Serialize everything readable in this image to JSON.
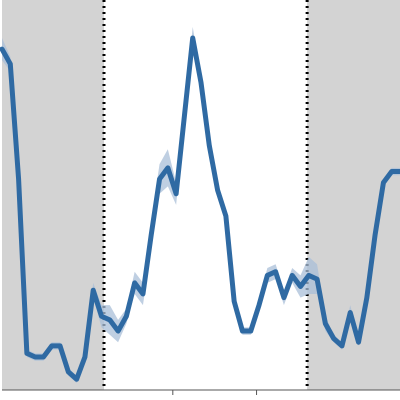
{
  "chart_data": {
    "type": "line",
    "title": "",
    "xlabel": "",
    "ylabel": "",
    "xlim": [
      0,
      48
    ],
    "ylim": [
      0,
      100
    ],
    "grid": false,
    "legend": "none",
    "shaded_regions": [
      {
        "x0": 0,
        "x1": 12.3,
        "color": "#d3d3d3"
      },
      {
        "x0": 36.8,
        "x1": 48,
        "color": "#d3d3d3"
      }
    ],
    "vertical_lines": [
      {
        "x": 12.3,
        "style": "dotted",
        "color": "#000000"
      },
      {
        "x": 36.8,
        "style": "dotted",
        "color": "#000000"
      }
    ],
    "x_ticks": [
      20.6,
      30.7
    ],
    "series": [
      {
        "color": "#2f6aa3",
        "band_color": "#a9bfd8",
        "x": [
          0,
          1,
          2,
          3,
          4,
          5,
          6,
          7,
          8,
          9,
          10,
          11,
          12,
          13,
          14,
          15,
          16,
          17,
          18,
          19,
          20,
          21,
          22,
          23,
          24,
          25,
          26,
          27,
          28,
          29,
          30,
          31,
          32,
          33,
          34,
          35,
          36,
          37,
          38,
          39,
          40,
          41,
          42,
          43,
          44,
          45,
          46,
          47,
          48
        ],
        "y": [
          90,
          86,
          55,
          8,
          7,
          7,
          10,
          10,
          3,
          1,
          7,
          25,
          18,
          17,
          14,
          18,
          27,
          24,
          40,
          55,
          58,
          51,
          72,
          93,
          81,
          64,
          52,
          45,
          22,
          14,
          14,
          21,
          29,
          30,
          23,
          29,
          26,
          29,
          28,
          16,
          12,
          10,
          19,
          11,
          23,
          40,
          54,
          57,
          57
        ],
        "y_err": [
          3,
          2,
          1,
          1,
          1,
          1,
          1,
          1,
          1,
          1,
          1,
          2,
          3,
          4,
          3,
          2,
          3,
          3,
          4,
          4,
          5,
          3,
          2,
          3,
          2,
          2,
          2,
          2,
          1,
          1,
          1,
          1,
          2,
          2,
          2,
          2,
          3,
          5,
          4,
          2,
          1,
          1,
          2,
          1,
          2,
          2,
          1,
          1,
          1
        ]
      }
    ]
  }
}
